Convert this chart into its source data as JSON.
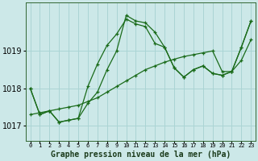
{
  "title": "Graphe pression niveau de la mer (hPa)",
  "background_color": "#cce8e8",
  "grid_color": "#aad4d4",
  "line_color": "#1a6b1a",
  "ylim": [
    1016.6,
    1020.3
  ],
  "yticks": [
    1017,
    1018,
    1019
  ],
  "x_labels": [
    "0",
    "1",
    "2",
    "3",
    "4",
    "5",
    "6",
    "7",
    "8",
    "9",
    "10",
    "11",
    "12",
    "13",
    "14",
    "15",
    "16",
    "17",
    "18",
    "19",
    "20",
    "21",
    "22",
    "23"
  ],
  "series": {
    "line_jagged1": [
      1018.0,
      1017.3,
      1017.4,
      1017.1,
      1017.15,
      1017.2,
      1017.6,
      1017.9,
      1018.5,
      1019.0,
      1019.95,
      1019.8,
      1019.75,
      1019.5,
      1019.1,
      1018.55,
      1018.3,
      1018.5,
      1018.6,
      1018.4,
      1018.35,
      1018.45,
      1019.1,
      1019.8
    ],
    "line_jagged2": [
      1018.0,
      1017.3,
      1017.4,
      1017.1,
      1017.15,
      1017.2,
      1018.05,
      1018.65,
      1019.15,
      1019.45,
      1019.85,
      1019.72,
      1019.65,
      1019.2,
      1019.1,
      1018.55,
      1018.3,
      1018.5,
      1018.6,
      1018.4,
      1018.35,
      1018.45,
      1019.1,
      1019.8
    ],
    "line_smooth": [
      1017.3,
      1017.35,
      1017.4,
      1017.45,
      1017.5,
      1017.55,
      1017.65,
      1017.75,
      1017.9,
      1018.05,
      1018.2,
      1018.35,
      1018.5,
      1018.6,
      1018.7,
      1018.78,
      1018.85,
      1018.9,
      1018.95,
      1019.0,
      1018.45,
      1018.45,
      1018.75,
      1019.3
    ]
  }
}
